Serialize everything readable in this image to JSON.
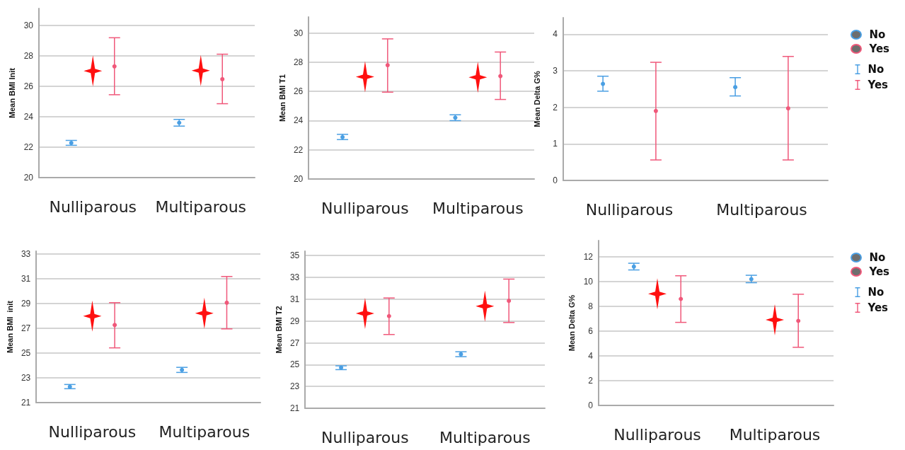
{
  "chart_data": [
    {
      "type": "scatter",
      "ylabel": "Mean BMI Init",
      "categories": [
        "Nulliparous",
        "Multiparous"
      ],
      "ylim": [
        20,
        31.1
      ],
      "yticks": [
        20,
        22,
        24,
        26,
        28,
        30
      ],
      "grid": "y",
      "legend": false,
      "series": [
        {
          "color": "#4a9fe3",
          "marker": "circle",
          "values": [
            22.27,
            23.6
          ],
          "errors": [
            [
              22.12,
              22.44
            ],
            [
              23.38,
              23.82
            ]
          ]
        },
        {
          "color": "#ff1010",
          "marker": "star",
          "values": [
            27.0,
            27.03
          ]
        },
        {
          "color": "#f0587a",
          "marker": "circle",
          "values": [
            27.3,
            26.46
          ],
          "errors": [
            [
              25.44,
              29.18
            ],
            [
              24.85,
              28.1
            ]
          ]
        }
      ]
    },
    {
      "type": "scatter",
      "ylabel": "Mean BMI T1",
      "categories": [
        "Nulliparous",
        "Multiparous"
      ],
      "ylim": [
        20,
        31.1
      ],
      "yticks": [
        20,
        22,
        24,
        26,
        28,
        30
      ],
      "grid": "y",
      "legend": false,
      "series": [
        {
          "color": "#4a9fe3",
          "marker": "circle",
          "values": [
            22.87,
            24.2
          ],
          "errors": [
            [
              22.7,
              23.06
            ],
            [
              24.0,
              24.4
            ]
          ]
        },
        {
          "color": "#ff1010",
          "marker": "star",
          "values": [
            27.0,
            26.97
          ]
        },
        {
          "color": "#f0587a",
          "marker": "circle",
          "values": [
            27.8,
            27.05
          ],
          "errors": [
            [
              25.95,
              29.6
            ],
            [
              25.45,
              28.7
            ]
          ]
        }
      ]
    },
    {
      "type": "scatter",
      "ylabel": "Mean Delta G%",
      "categories": [
        "Nulliparous",
        "Multiparous"
      ],
      "ylim": [
        0,
        4.45
      ],
      "yticks": [
        0,
        1,
        2,
        3,
        4
      ],
      "grid": "y",
      "legend": "right",
      "series": [
        {
          "name": "No",
          "color": "#4a9fe3",
          "marker": "circle",
          "values": [
            2.64,
            2.55
          ],
          "errors": [
            [
              2.44,
              2.85
            ],
            [
              2.31,
              2.81
            ]
          ]
        },
        {
          "name": "Yes",
          "color": "#f0587a",
          "marker": "circle",
          "values": [
            1.9,
            1.97
          ],
          "errors": [
            [
              0.56,
              3.23
            ],
            [
              0.56,
              3.39
            ]
          ]
        }
      ]
    },
    {
      "type": "scatter",
      "ylabel": "Mean BMI  init",
      "categories": [
        "Nulliparous",
        "Multiparous"
      ],
      "ylim": [
        21,
        33.2
      ],
      "yticks": [
        21,
        23,
        25,
        27,
        29,
        31,
        33
      ],
      "grid": "y",
      "legend": false,
      "series": [
        {
          "color": "#4a9fe3",
          "marker": "circle",
          "values": [
            22.27,
            23.63
          ],
          "errors": [
            [
              22.12,
              22.46
            ],
            [
              23.43,
              23.84
            ]
          ]
        },
        {
          "color": "#ff1010",
          "marker": "star",
          "values": [
            27.97,
            28.2
          ]
        },
        {
          "color": "#f0587a",
          "marker": "circle",
          "values": [
            27.25,
            29.05
          ],
          "errors": [
            [
              25.41,
              29.05
            ],
            [
              26.94,
              31.16
            ]
          ]
        }
      ]
    },
    {
      "type": "scatter",
      "ylabel": "Mean BMI T2",
      "categories": [
        "Nulliparous",
        "Multiparous"
      ],
      "ylim": [
        21,
        35.4
      ],
      "yticks": [
        21,
        23,
        25,
        27,
        29,
        31,
        33,
        35
      ],
      "grid": "y",
      "legend": false,
      "series": [
        {
          "color": "#4a9fe3",
          "marker": "circle",
          "values": [
            24.72,
            25.95
          ],
          "errors": [
            [
              24.54,
              24.89
            ],
            [
              25.73,
              26.18
            ]
          ]
        },
        {
          "color": "#ff1010",
          "marker": "star",
          "values": [
            29.7,
            30.35
          ]
        },
        {
          "color": "#f0587a",
          "marker": "circle",
          "values": [
            29.45,
            30.85
          ],
          "errors": [
            [
              27.76,
              31.11
            ],
            [
              28.86,
              32.84
            ]
          ]
        }
      ]
    },
    {
      "type": "scatter",
      "ylabel": "Mean Delta G%",
      "categories": [
        "Nulliparous",
        "Multiparous"
      ],
      "ylim": [
        0,
        13.3
      ],
      "yticks": [
        0,
        2,
        4,
        6,
        8,
        10,
        12
      ],
      "grid": "y",
      "legend": "right",
      "series": [
        {
          "name": "No",
          "color": "#4a9fe3",
          "marker": "circle",
          "values": [
            11.2,
            10.19
          ],
          "errors": [
            [
              10.93,
              11.47
            ],
            [
              9.9,
              10.5
            ]
          ]
        },
        {
          "color": "#ff1010",
          "marker": "star",
          "values": [
            9.0,
            6.9
          ]
        },
        {
          "name": "Yes",
          "color": "#f0587a",
          "marker": "circle",
          "values": [
            8.59,
            6.82
          ],
          "errors": [
            [
              6.7,
              10.46
            ],
            [
              4.69,
              8.97
            ]
          ]
        }
      ]
    }
  ]
}
